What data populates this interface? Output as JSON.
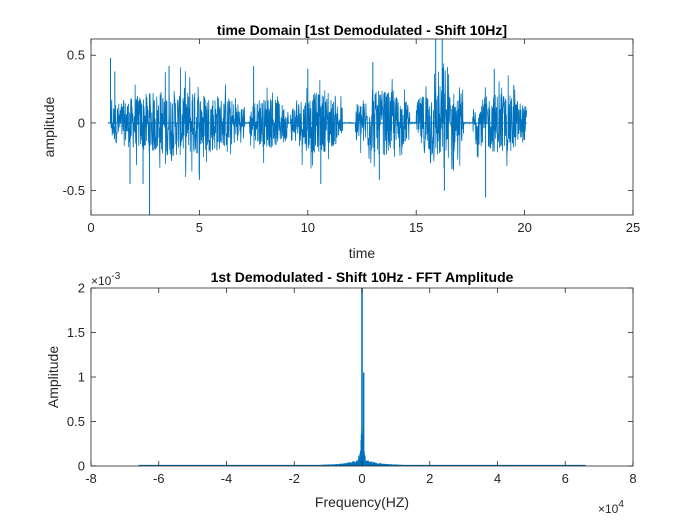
{
  "chart_data": [
    {
      "type": "line",
      "title": "time Domain [1st Demodulated - Shift 10Hz]",
      "xlabel": "time",
      "ylabel": "amplitude",
      "xlim": [
        0,
        25
      ],
      "ylim": [
        -0.68,
        0.62
      ],
      "xticks": [
        0,
        5,
        10,
        15,
        20,
        25
      ],
      "yticks": [
        -0.5,
        0,
        0.5
      ],
      "xtick_labels": [
        "0",
        "5",
        "10",
        "15",
        "20",
        "25"
      ],
      "ytick_labels": [
        "-0.5",
        "0",
        "0.5"
      ],
      "grid": false,
      "color": "#0072BD",
      "signal_range": [
        0.8,
        20.1
      ],
      "bursts": [
        {
          "start": 0.9,
          "end": 7.1,
          "amp": 0.33
        },
        {
          "start": 7.3,
          "end": 9.1,
          "amp": 0.25
        },
        {
          "start": 9.2,
          "end": 11.6,
          "amp": 0.3
        },
        {
          "start": 12.2,
          "end": 14.7,
          "amp": 0.32
        },
        {
          "start": 15.0,
          "end": 17.2,
          "amp": 0.38
        },
        {
          "start": 17.6,
          "end": 20.1,
          "amp": 0.3
        }
      ],
      "peaks": [
        {
          "x": 0.9,
          "y": 0.48
        },
        {
          "x": 1.1,
          "y": 0.38
        },
        {
          "x": 2.7,
          "y": -0.68
        },
        {
          "x": 2.4,
          "y": -0.45
        },
        {
          "x": 3.6,
          "y": 0.42
        },
        {
          "x": 1.8,
          "y": -0.45
        },
        {
          "x": 5.0,
          "y": -0.42
        },
        {
          "x": 7.5,
          "y": 0.42
        },
        {
          "x": 10.0,
          "y": 0.4
        },
        {
          "x": 10.6,
          "y": -0.45
        },
        {
          "x": 13.0,
          "y": 0.45
        },
        {
          "x": 13.3,
          "y": -0.42
        },
        {
          "x": 15.9,
          "y": 0.62
        },
        {
          "x": 16.2,
          "y": 0.62
        },
        {
          "x": 16.3,
          "y": -0.5
        },
        {
          "x": 18.6,
          "y": 0.4
        },
        {
          "x": 18.2,
          "y": -0.55
        },
        {
          "x": 19.5,
          "y": 0.28
        }
      ]
    },
    {
      "type": "line",
      "title": "1st Demodulated - Shift 10Hz - FFT Amplitude",
      "xlabel": "Frequency(HZ)",
      "ylabel": "Amplitude",
      "xlim": [
        -8,
        8
      ],
      "ylim": [
        0,
        2
      ],
      "xticks": [
        -8,
        -6,
        -4,
        -2,
        0,
        2,
        4,
        6,
        8
      ],
      "yticks": [
        0,
        0.5,
        1,
        1.5,
        2
      ],
      "xtick_labels": [
        "-8",
        "-6",
        "-4",
        "-2",
        "0",
        "2",
        "4",
        "6",
        "8"
      ],
      "ytick_labels": [
        "0",
        "0.5",
        "1",
        "1.5",
        "2"
      ],
      "x_multiplier": "×10",
      "x_multiplier_exp": "4",
      "y_multiplier": "×10",
      "y_multiplier_exp": "-3",
      "grid": false,
      "color": "#0072BD",
      "signal_range": [
        -6.6,
        6.6
      ],
      "peak": {
        "x": 0,
        "y": 2.0
      },
      "secondary_peak": {
        "x": 0.05,
        "y": 1.05
      }
    }
  ]
}
